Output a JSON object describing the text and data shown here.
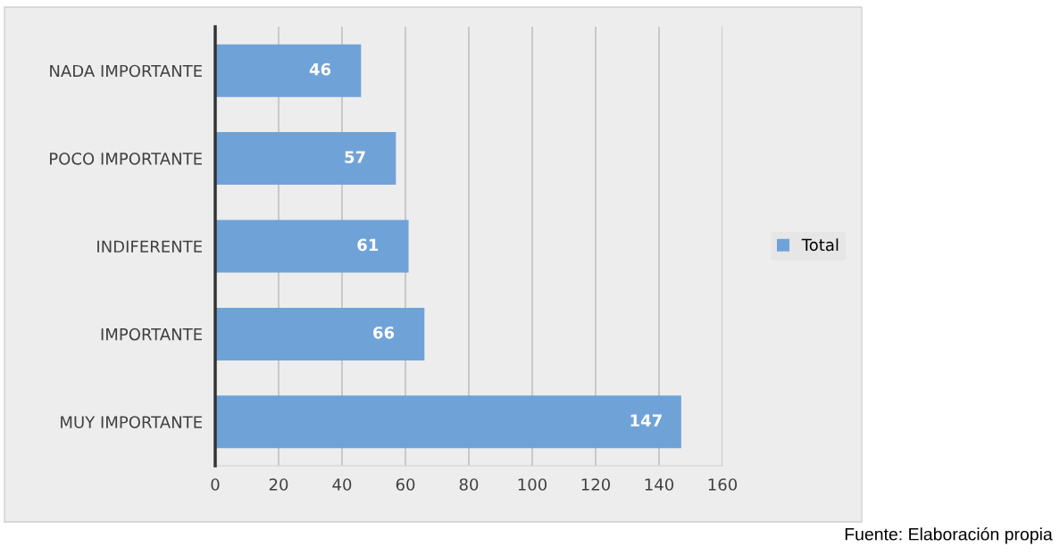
{
  "chart_data": {
    "type": "bar",
    "orientation": "horizontal",
    "categories": [
      "NADA IMPORTANTE",
      "POCO IMPORTANTE",
      "INDIFERENTE",
      "IMPORTANTE",
      "MUY IMPORTANTE"
    ],
    "series": [
      {
        "name": "Total",
        "color": "#6fa3d8",
        "values": [
          46,
          57,
          61,
          66,
          147
        ]
      }
    ],
    "xlim": [
      0,
      160
    ],
    "xticks": [
      0,
      20,
      40,
      60,
      80,
      100,
      120,
      140,
      160
    ],
    "grid": "x",
    "legend": "right",
    "data_labels": true,
    "annotations": [
      "Fuente: Elaboración propia"
    ]
  }
}
